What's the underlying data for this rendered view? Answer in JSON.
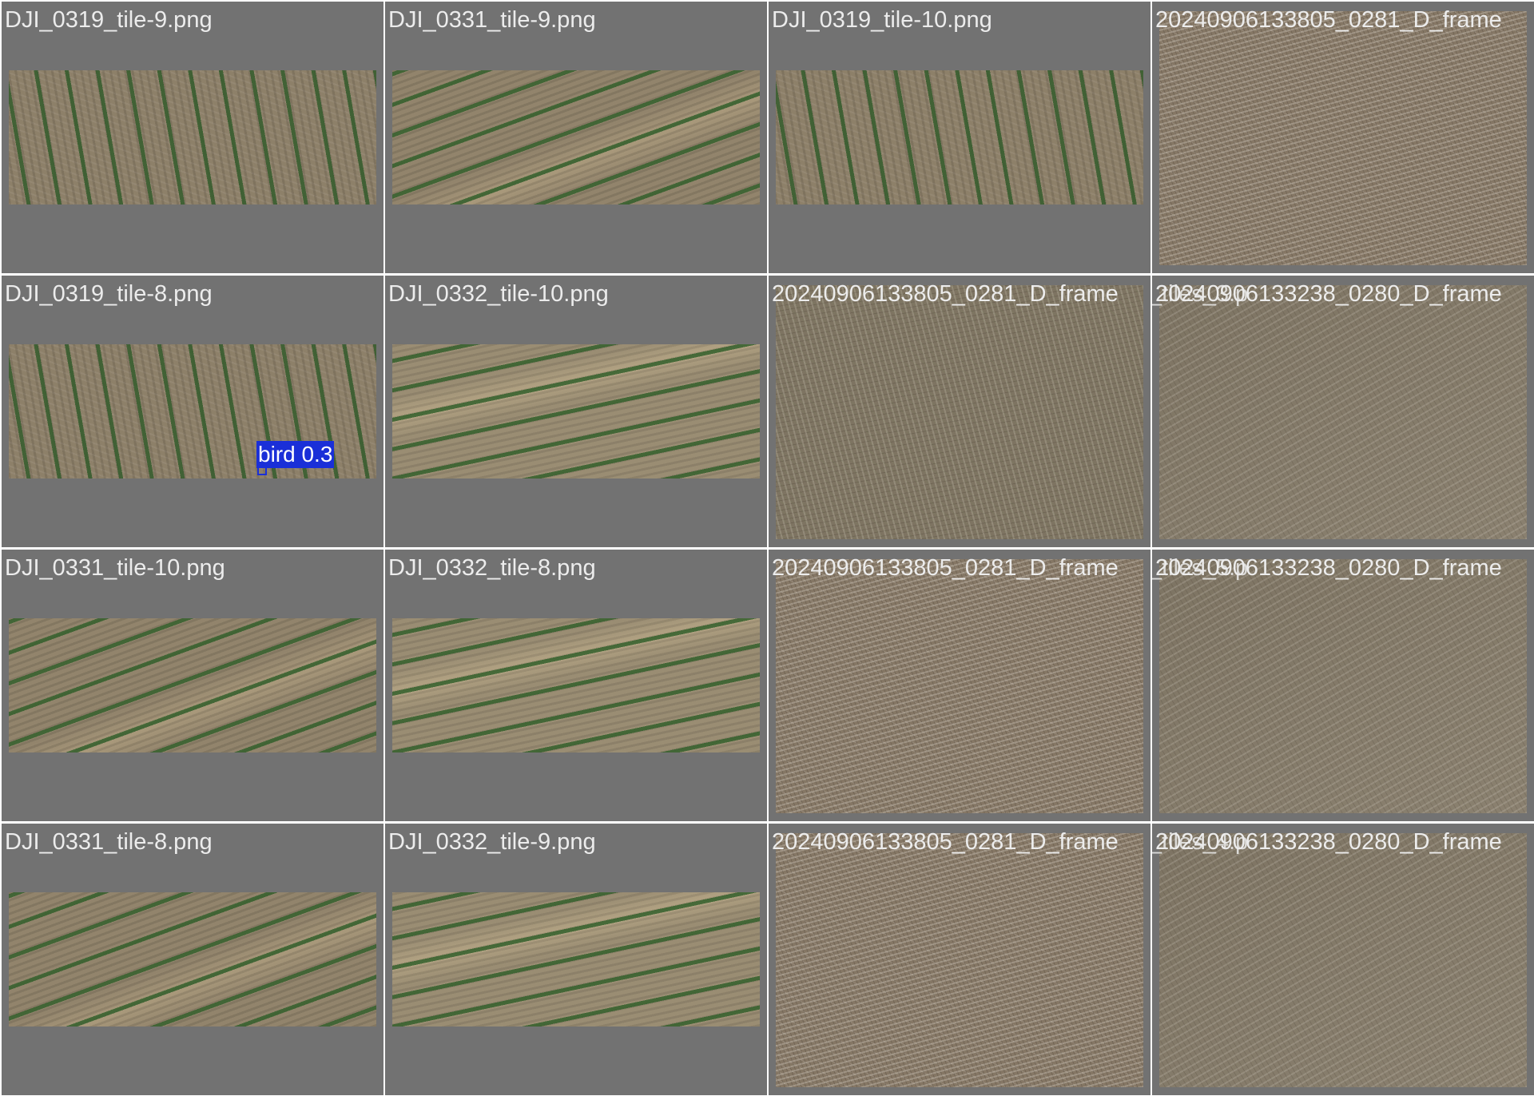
{
  "tiles": [
    {
      "caption": "DJI_0319_tile-9.png",
      "texture": "crop-rows-vertical"
    },
    {
      "caption": "DJI_0331_tile-9.png",
      "texture": "crop-rows-diagonal"
    },
    {
      "caption": "DJI_0319_tile-10.png",
      "texture": "crop-rows-vertical"
    },
    {
      "caption": "20240906133805_0281_D_frame",
      "texture": "bare-soil"
    },
    {
      "caption": "DJI_0319_tile-8.png",
      "texture": "crop-rows-vertical",
      "detection": {
        "label": "bird 0.3"
      }
    },
    {
      "caption": "DJI_0332_tile-10.png",
      "texture": "crop-rows-horizontal"
    },
    {
      "caption": "20240906133805_0281_D_frame",
      "overlap_caption": "_tiles_3.p",
      "texture": "bare-soil"
    },
    {
      "caption": "20240906133238_0280_D_frame",
      "overlap_caption": "20240906133",
      "texture": "bare-soil"
    },
    {
      "caption": "DJI_0331_tile-10.png",
      "texture": "crop-rows-diagonal"
    },
    {
      "caption": "DJI_0332_tile-8.png",
      "texture": "crop-rows-horizontal"
    },
    {
      "caption": "20240906133805_0281_D_frame",
      "overlap_caption": "_tiles_5.p",
      "texture": "bare-soil"
    },
    {
      "caption": "20240906133238_0280_D_frame",
      "overlap_caption": "20240906133",
      "texture": "bare-soil"
    },
    {
      "caption": "DJI_0331_tile-8.png",
      "texture": "crop-rows-diagonal"
    },
    {
      "caption": "DJI_0332_tile-9.png",
      "texture": "crop-rows-horizontal"
    },
    {
      "caption": "20240906133805_0281_D_frame",
      "overlap_caption": "_tiles_4.p",
      "texture": "bare-soil"
    },
    {
      "caption": "20240906133238_0280_D_frame",
      "overlap_caption": "20240906133",
      "texture": "bare-soil"
    }
  ],
  "colors": {
    "cell_background": "#727272",
    "separator": "#ffffff",
    "caption_text": "#ececec",
    "detection_box": "#1a2fd8"
  }
}
